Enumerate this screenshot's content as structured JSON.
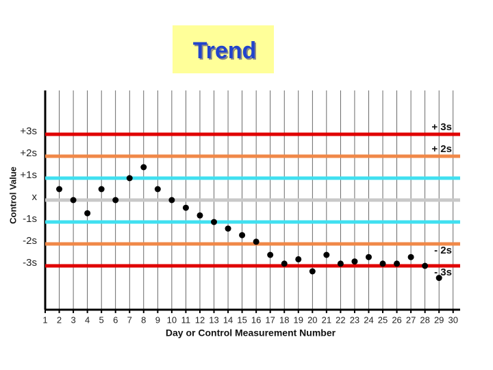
{
  "chart_data": {
    "type": "scatter",
    "title": "Trend",
    "x_label": "Day or Control Measurement Number",
    "y_label": "Control Value",
    "xlim": [
      1,
      30.5
    ],
    "ylim": [
      -5,
      5
    ],
    "xticks": [
      1,
      2,
      3,
      4,
      5,
      6,
      7,
      8,
      9,
      10,
      11,
      12,
      13,
      14,
      15,
      16,
      17,
      18,
      19,
      20,
      21,
      22,
      23,
      24,
      25,
      26,
      27,
      28,
      29,
      30
    ],
    "yticks": [
      {
        "value": 3,
        "label": "+3s"
      },
      {
        "value": 2,
        "label": "+2s"
      },
      {
        "value": 1,
        "label": "+1s"
      },
      {
        "value": 0,
        "label": "x"
      },
      {
        "value": -1,
        "label": "-1s"
      },
      {
        "value": -2,
        "label": "-2s"
      },
      {
        "value": -3,
        "label": "-3s"
      }
    ],
    "grid": true,
    "control_lines": [
      {
        "value": 3,
        "color": "#e00000",
        "label": "+ 3s"
      },
      {
        "value": 2,
        "color": "#f08848",
        "label": "+ 2s"
      },
      {
        "value": 1,
        "color": "#40e0f0"
      },
      {
        "value": 0,
        "color": "#c8c8c8"
      },
      {
        "value": -1,
        "color": "#40e0f0"
      },
      {
        "value": -2,
        "color": "#f08848",
        "label": "- 2s"
      },
      {
        "value": -3,
        "color": "#e00000",
        "label": "- 3s"
      }
    ],
    "series": [
      {
        "color": "#000000",
        "x": [
          2,
          3,
          4,
          5,
          6,
          7,
          8,
          9,
          10,
          11,
          12,
          13,
          14,
          15,
          16,
          17,
          18,
          19,
          20,
          21,
          22,
          23,
          24,
          25,
          26,
          27,
          28,
          29
        ],
        "values": [
          0.5,
          0,
          -0.6,
          0.5,
          0,
          1.0,
          1.5,
          0.5,
          0,
          -0.35,
          -0.7,
          -1.0,
          -1.3,
          -1.6,
          -1.9,
          -2.5,
          -2.9,
          -2.7,
          -3.25,
          -2.5,
          -2.9,
          -2.8,
          -2.6,
          -2.9,
          -2.9,
          -2.6,
          -3.0,
          -3.55
        ]
      }
    ]
  }
}
